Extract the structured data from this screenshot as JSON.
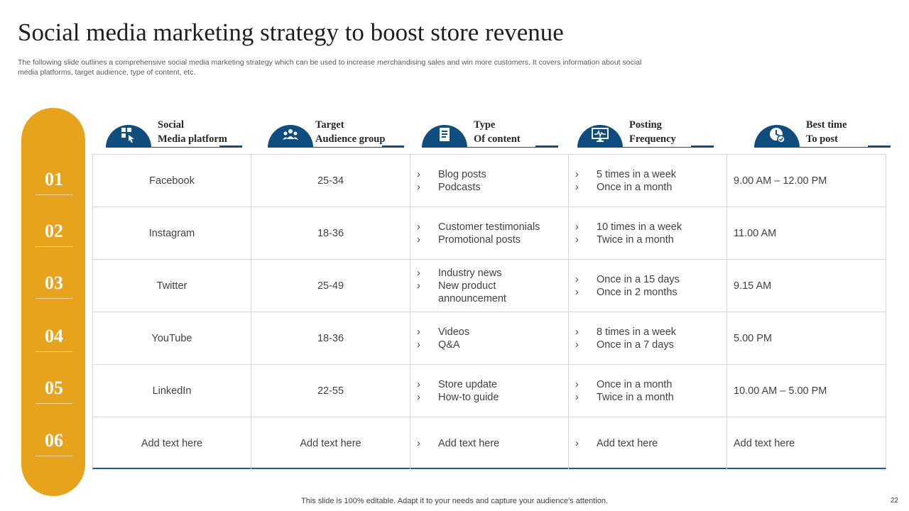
{
  "title": "Social media marketing strategy to boost store revenue",
  "subtitle": "The following slide outlines a comprehensive social media marketing strategy which can be used to increase merchandising sales and win more customers. It covers information about social media platforms, target audience, type of content, etc.",
  "row_numbers": [
    "01",
    "02",
    "03",
    "04",
    "05",
    "06"
  ],
  "headers": [
    {
      "line1": "Social",
      "line2": "Media platform",
      "icon": "social-media-icon"
    },
    {
      "line1": "Target",
      "line2": "Audience group",
      "icon": "audience-icon"
    },
    {
      "line1": "Type",
      "line2": "Of content",
      "icon": "content-icon"
    },
    {
      "line1": "Posting",
      "line2": "Frequency",
      "icon": "monitor-icon"
    },
    {
      "line1": "Best time",
      "line2": "To post",
      "icon": "clock-icon"
    }
  ],
  "rows": [
    {
      "platform": "Facebook",
      "audience": "25-34",
      "content": [
        "Blog posts",
        "Podcasts"
      ],
      "frequency": [
        "5 times in a week",
        "Once in a month"
      ],
      "best_time": "9.00 AM – 12.00 PM"
    },
    {
      "platform": "Instagram",
      "audience": "18-36",
      "content": [
        "Customer testimonials",
        "Promotional posts"
      ],
      "frequency": [
        "10 times in a week",
        "Twice in a month"
      ],
      "best_time": "11.00 AM"
    },
    {
      "platform": "Twitter",
      "audience": "25-49",
      "content": [
        "Industry news",
        "New product announcement"
      ],
      "frequency": [
        "Once in a 15 days",
        "Once in 2 months"
      ],
      "best_time": "9.15 AM"
    },
    {
      "platform": "YouTube",
      "audience": "18-36",
      "content": [
        "Videos",
        "Q&A"
      ],
      "frequency": [
        "8 times in a week",
        "Once in a 7 days"
      ],
      "best_time": "5.00 PM"
    },
    {
      "platform": "LinkedIn",
      "audience": "22-55",
      "content": [
        "Store update",
        "How-to guide"
      ],
      "frequency": [
        "Once in a month",
        "Twice in a month"
      ],
      "best_time": "10.00 AM – 5.00 PM"
    },
    {
      "platform": "Add text here",
      "audience": "Add text here",
      "content": [
        "Add text here"
      ],
      "frequency": [
        "Add text here"
      ],
      "best_time": "Add text here"
    }
  ],
  "footer": "This slide is 100% editable. Adapt it to your needs and capture your audience's attention.",
  "page_number": "22",
  "colors": {
    "accent": "#E8A31D",
    "primary": "#0F4D7E"
  }
}
